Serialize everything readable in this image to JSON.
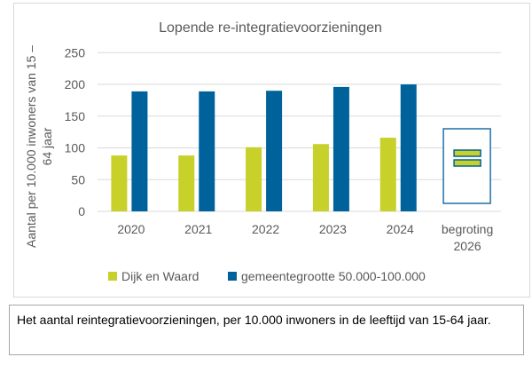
{
  "chart_data": {
    "type": "bar",
    "title": "Lopende re-integratievoorzieningen",
    "ylabel": "Aantal per 10.000 inwoners van 15 – 64 jaar",
    "xlabel": "",
    "ylim": [
      0,
      250
    ],
    "yticks": [
      "0",
      "50",
      "100",
      "150",
      "200",
      "250"
    ],
    "grid": true,
    "categories": [
      "2020",
      "2021",
      "2022",
      "2023",
      "2024",
      "begroting 2026"
    ],
    "series": [
      {
        "name": "Dijk en Waard",
        "color": "#c8d02a",
        "values": [
          88,
          88,
          101,
          106,
          116,
          null
        ]
      },
      {
        "name": "gemeentegrootte 50.000-100.000",
        "color": "#00629b",
        "values": [
          189,
          189,
          190,
          196,
          200,
          null
        ]
      }
    ],
    "legend_position": "bottom",
    "budget_icon": "equals-icon"
  },
  "caption": "Het aantal reintegratievoorzieningen, per 10.000 inwoners in de leeftijd van 15-64 jaar."
}
